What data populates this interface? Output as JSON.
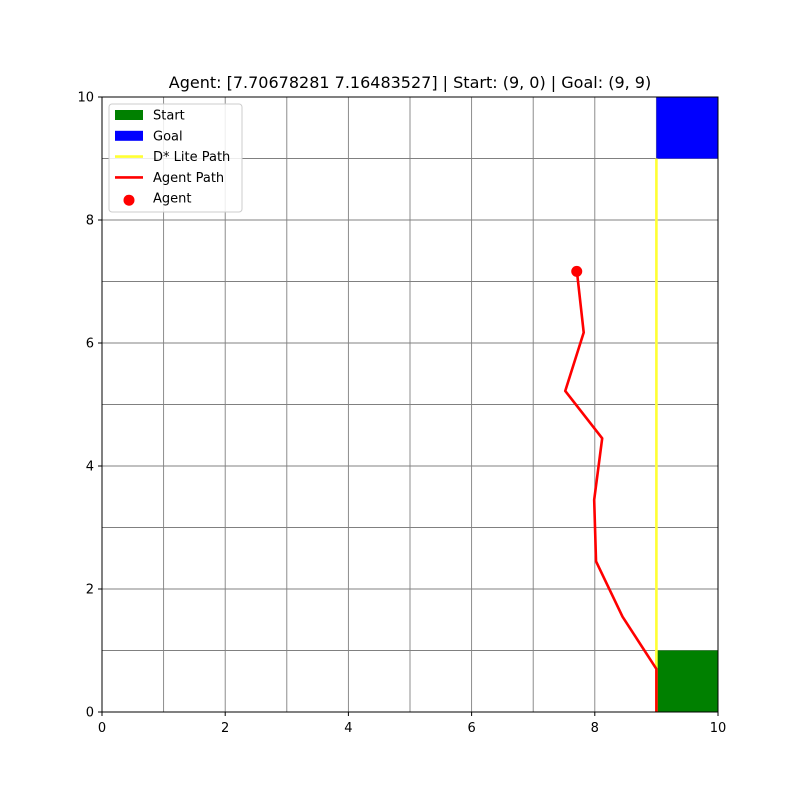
{
  "chart_data": {
    "type": "line",
    "title": "Agent: [7.70678281 7.16483527] | Start: (9, 0) | Goal: (9, 9)",
    "xlabel": "",
    "ylabel": "",
    "xlim": [
      0,
      10
    ],
    "ylim": [
      0,
      10
    ],
    "x_ticks": [
      0,
      2,
      4,
      6,
      8,
      10
    ],
    "y_ticks": [
      0,
      2,
      4,
      6,
      8,
      10
    ],
    "x_tick_labels": [
      "0",
      "2",
      "4",
      "6",
      "8",
      "10"
    ],
    "y_tick_labels": [
      "0",
      "2",
      "4",
      "6",
      "8",
      "10"
    ],
    "grid": true,
    "grid_step": 1,
    "legend_position": "top-left",
    "cells": [
      {
        "name": "Start",
        "x": 9,
        "y": 0,
        "w": 1,
        "h": 1,
        "color": "#008000"
      },
      {
        "name": "Goal",
        "x": 9,
        "y": 9,
        "w": 1,
        "h": 1,
        "color": "#0000ff"
      }
    ],
    "series": [
      {
        "name": "D* Lite Path",
        "color": "#ffff33",
        "points": [
          [
            9,
            0
          ],
          [
            9,
            9
          ]
        ]
      },
      {
        "name": "Agent Path",
        "color": "#ff0000",
        "points": [
          [
            9,
            0
          ],
          [
            9,
            0.7
          ],
          [
            8.45,
            1.55
          ],
          [
            8.02,
            2.45
          ],
          [
            7.99,
            3.45
          ],
          [
            8.12,
            4.45
          ],
          [
            7.52,
            5.22
          ],
          [
            7.82,
            6.17
          ],
          [
            7.71,
            7.16
          ]
        ]
      }
    ],
    "agent": {
      "name": "Agent",
      "x": 7.70678281,
      "y": 7.16483527,
      "color": "#ff0000"
    },
    "legend": [
      {
        "label": "Start",
        "kind": "patch",
        "color": "#008000"
      },
      {
        "label": "Goal",
        "kind": "patch",
        "color": "#0000ff"
      },
      {
        "label": "D* Lite Path",
        "kind": "line",
        "color": "#ffff33"
      },
      {
        "label": "Agent Path",
        "kind": "line",
        "color": "#ff0000"
      },
      {
        "label": "Agent",
        "kind": "marker",
        "color": "#ff0000"
      }
    ]
  }
}
